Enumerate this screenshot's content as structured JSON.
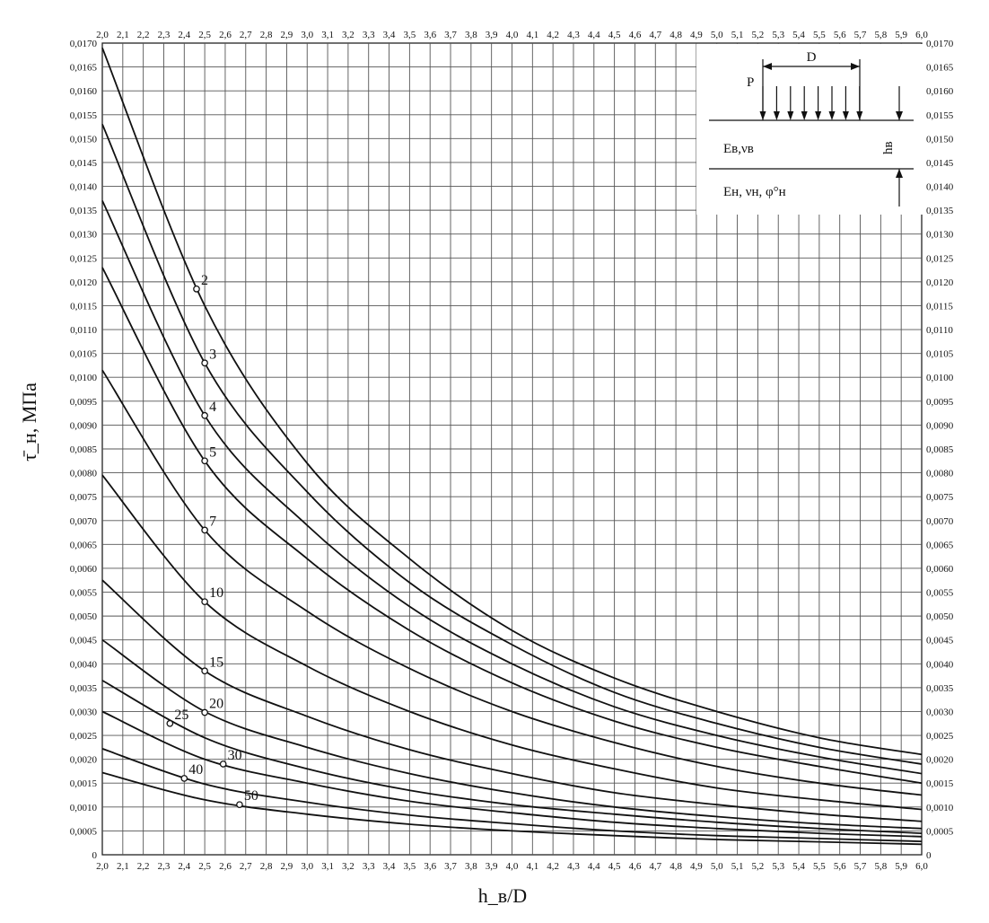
{
  "chart_data": {
    "type": "line",
    "title": "",
    "xlabel": "h_в/D",
    "ylabel": "τ̄_н, МПа",
    "xlim": [
      2.0,
      6.0
    ],
    "ylim": [
      0,
      0.017
    ],
    "grid": true,
    "x_tick_labels": [
      "2,0",
      "2,1",
      "2,2",
      "2,3",
      "2,4",
      "2,5",
      "2,6",
      "2,7",
      "2,8",
      "2,9",
      "3,0",
      "3,1",
      "3,2",
      "3,3",
      "3,4",
      "3,5",
      "3,6",
      "3,7",
      "3,8",
      "3,9",
      "4,0",
      "4,1",
      "4,2",
      "4,3",
      "4,4",
      "4,5",
      "4,6",
      "4,7",
      "4,8",
      "4,9",
      "5,0",
      "5,1",
      "5,2",
      "5,3",
      "5,4",
      "5,5",
      "5,6",
      "5,7",
      "5,8",
      "5,9",
      "6,0"
    ],
    "y_tick_labels": [
      "0",
      "0,0005",
      "0,0010",
      "0,0015",
      "0,0020",
      "0,0025",
      "0,0030",
      "0,0035",
      "0,0040",
      "0,0045",
      "0,0050",
      "0,0055",
      "0,0060",
      "0,0065",
      "0,0070",
      "0,0075",
      "0,0080",
      "0,0085",
      "0,0090",
      "0,0095",
      "0,0100",
      "0,0105",
      "0,0110",
      "0,0115",
      "0,0120",
      "0,0125",
      "0,0130",
      "0,0135",
      "0,0140",
      "0,0145",
      "0,0150",
      "0,0155",
      "0,0160",
      "0,0165",
      "0,0170"
    ],
    "x": [
      2.0,
      2.5,
      3.0,
      3.5,
      4.0,
      4.5,
      5.0,
      5.5,
      6.0
    ],
    "series": [
      {
        "name": "2",
        "values": [
          0.0169,
          0.0115,
          0.0082,
          0.0062,
          0.0047,
          0.0037,
          0.003,
          0.00245,
          0.0021
        ],
        "marker": [
          2.46,
          0.01185
        ]
      },
      {
        "name": "3",
        "values": [
          0.0153,
          0.0103,
          0.0076,
          0.0057,
          0.0044,
          0.0034,
          0.00275,
          0.00225,
          0.0019
        ],
        "marker": [
          2.5,
          0.0103
        ]
      },
      {
        "name": "4",
        "values": [
          0.0137,
          0.0092,
          0.0069,
          0.0052,
          0.004,
          0.0031,
          0.0025,
          0.00205,
          0.0017
        ],
        "marker": [
          2.5,
          0.0092
        ]
      },
      {
        "name": "5",
        "values": [
          0.0123,
          0.00825,
          0.0062,
          0.0047,
          0.0036,
          0.0028,
          0.00225,
          0.00185,
          0.0015
        ],
        "marker": [
          2.5,
          0.00825
        ]
      },
      {
        "name": "7",
        "values": [
          0.01015,
          0.0068,
          0.0051,
          0.0039,
          0.003,
          0.00235,
          0.00185,
          0.0015,
          0.00125
        ],
        "marker": [
          2.5,
          0.0068
        ]
      },
      {
        "name": "10",
        "values": [
          0.00795,
          0.0053,
          0.00395,
          0.003,
          0.0023,
          0.0018,
          0.0014,
          0.00115,
          0.00095
        ],
        "marker": [
          2.5,
          0.0053
        ]
      },
      {
        "name": "15",
        "values": [
          0.00575,
          0.00385,
          0.0029,
          0.0022,
          0.0017,
          0.0013,
          0.00105,
          0.00085,
          0.0007
        ],
        "marker": [
          2.5,
          0.00385
        ]
      },
      {
        "name": "20",
        "values": [
          0.0045,
          0.003,
          0.00225,
          0.0017,
          0.0013,
          0.001,
          0.0008,
          0.00065,
          0.00055
        ],
        "marker": [
          2.5,
          0.00298
        ]
      },
      {
        "name": "25",
        "values": [
          0.00365,
          0.00245,
          0.0018,
          0.00135,
          0.00105,
          0.00085,
          0.00068,
          0.00055,
          0.00045
        ],
        "marker": [
          2.33,
          0.00275
        ]
      },
      {
        "name": "30",
        "values": [
          0.003,
          0.002,
          0.0015,
          0.00112,
          0.00088,
          0.00068,
          0.00055,
          0.00045,
          0.00038
        ],
        "marker": [
          2.59,
          0.0019
        ]
      },
      {
        "name": "40",
        "values": [
          0.00222,
          0.00148,
          0.0011,
          0.00083,
          0.00065,
          0.0005,
          0.0004,
          0.00034,
          0.00028
        ],
        "marker": [
          2.4,
          0.0016
        ]
      },
      {
        "name": "50",
        "values": [
          0.00172,
          0.00115,
          0.00085,
          0.00064,
          0.0005,
          0.0004,
          0.00032,
          0.00027,
          0.00022
        ],
        "marker": [
          2.67,
          0.00105
        ]
      }
    ]
  },
  "inset": {
    "d_label": "D",
    "p_label": "P",
    "upper_layer": "Eв,νв",
    "lower_layer": "Eн, νн, φ°н",
    "thickness_label": "hв"
  }
}
